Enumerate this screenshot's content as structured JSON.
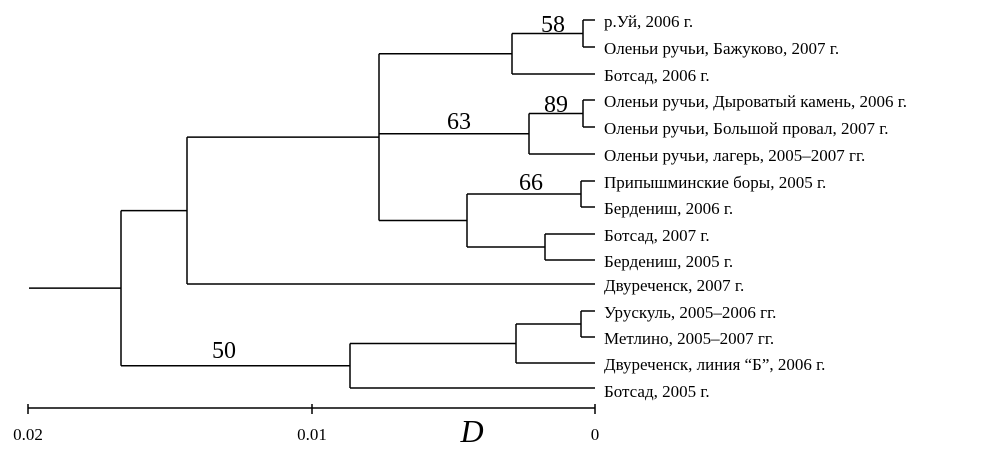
{
  "leaves": [
    "р.Уй, 2006 г.",
    "Оленьи ручьи, Бажуково, 2007 г.",
    "Ботсад, 2006 г.",
    "Оленьи ручьи, Дыроватый камень, 2006 г.",
    "Оленьи ручьи, Большой провал, 2007 г.",
    "Оленьи ручьи, лагерь, 2005–2007 гг.",
    "Припышминские боры, 2005 г.",
    "Бердениш, 2006 г.",
    "Ботсад, 2007 г.",
    "Бердениш, 2005 г.",
    "Двуреченск, 2007 г.",
    "Урускуль, 2005–2006 гг.",
    "Метлино, 2005–2007 гг.",
    "Двуреченск, линия “Б”, 2006 г.",
    "Ботсад, 2005 г."
  ],
  "bootstrap": [
    "58",
    "89",
    "63",
    "66",
    "50"
  ],
  "axis": {
    "title": "D",
    "range": [
      0.02,
      0
    ],
    "ticks": [
      "0.02",
      "0.01",
      "0"
    ]
  }
}
